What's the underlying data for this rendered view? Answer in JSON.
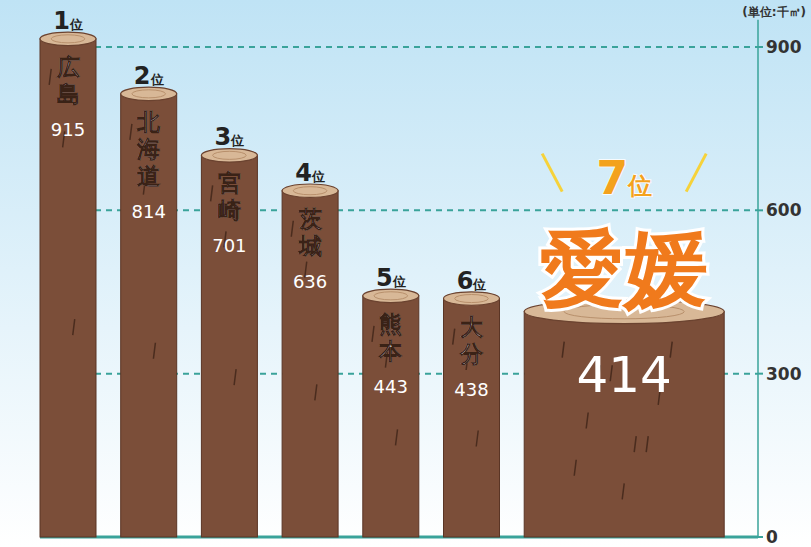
{
  "chart_data": {
    "type": "bar",
    "unit_label": "(単位:千㎥)",
    "categories": [
      "広島",
      "北海道",
      "宮崎",
      "茨城",
      "熊本",
      "大分",
      "愛媛"
    ],
    "rank_labels": [
      "1位",
      "2位",
      "3位",
      "4位",
      "5位",
      "6位",
      "7位"
    ],
    "values": [
      915,
      814,
      701,
      636,
      443,
      438,
      414
    ],
    "color": "#7b4e39",
    "ylim": [
      0,
      950
    ],
    "yticks": [
      0,
      300,
      600,
      900
    ],
    "grid": true,
    "data_labels": true
  }
}
